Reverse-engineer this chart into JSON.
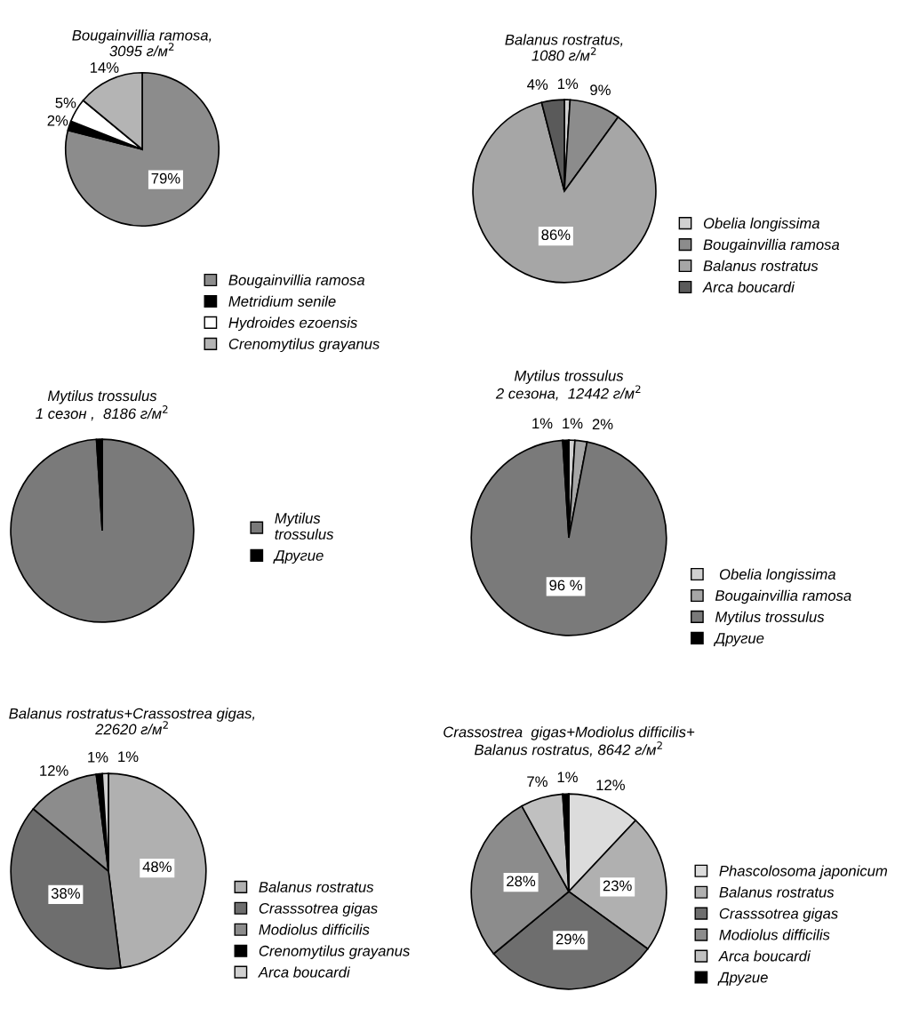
{
  "chart_data": [
    {
      "type": "pie",
      "title": "Bougainvillia ramosa,\n3095 г/м$^{2}$",
      "categories": [
        "Bougainvillia ramosa",
        "Metridium senile",
        "Hydroides ezoensis",
        "Crenomytilus grayanus"
      ],
      "values": [
        79,
        2,
        5,
        14
      ],
      "colors": [
        "#8c8c8c",
        "#000000",
        "#ffffff",
        "#b4b4b4"
      ],
      "value_labels": [
        "79%",
        "2%",
        "5%",
        "14%"
      ],
      "legend": "bottom right"
    },
    {
      "type": "pie",
      "title": "Balanus rostratus,\n1080 г/м$^{2}$",
      "categories": [
        "Obelia longissima",
        "Bougainvillia ramosa",
        "Balanus rostratus",
        "Arca boucardi"
      ],
      "values": [
        1,
        9,
        86,
        4
      ],
      "colors": [
        "#d0d0d0",
        "#8c8c8c",
        "#a6a6a6",
        "#5a5a5a"
      ],
      "value_labels": [
        "1%",
        "9%",
        "86%",
        "4%"
      ],
      "legend": "right"
    },
    {
      "type": "pie",
      "title": "Mytilus trossulus\n1 сезон ,  8186 г/м$^{2}$",
      "categories": [
        "Mytilus\ntrossulus",
        "Другие"
      ],
      "values": [
        99,
        1
      ],
      "colors": [
        "#7a7a7a",
        "#000000"
      ],
      "legend": "right"
    },
    {
      "type": "pie",
      "title": "Mytilus trossulus\n2 сезона,  12442 г/м$^{2}$",
      "categories": [
        " Obelia longissima",
        "Bougainvillia ramosa",
        "Mytilus trossulus",
        "Другие"
      ],
      "values": [
        1,
        2,
        96,
        1
      ],
      "colors": [
        "#d0d0d0",
        "#a6a6a6",
        "#7a7a7a",
        "#000000"
      ],
      "value_labels": [
        "1%",
        "2%",
        "96 %",
        "1%"
      ],
      "legend": "right"
    },
    {
      "type": "pie",
      "title": "Balanus rostratus+Crassostrea gigas,\n22620 г/м$^{2}$",
      "categories": [
        "Balanus rostratus",
        "Crasssotrea gigas",
        "Modiolus difficilis",
        "Crenomytilus grayanus",
        "Arca boucardi"
      ],
      "values": [
        48,
        38,
        12,
        1,
        1
      ],
      "colors": [
        "#b0b0b0",
        "#6e6e6e",
        "#8c8c8c",
        "#000000",
        "#d0d0d0"
      ],
      "value_labels": [
        "48%",
        "38%",
        "12%",
        "1%",
        "1%"
      ],
      "legend": "right"
    },
    {
      "type": "pie",
      "title": "Crassostrea  gigas+Modiolus difficilis+\nBalanus rostratus, 8642 г/м$^{2}$",
      "categories": [
        "Phascolosoma japonicum",
        "Balanus rostratus",
        "Crasssotrea gigas",
        "Modiolus difficilis",
        "Arca boucardi",
        "Другие"
      ],
      "values": [
        12,
        23,
        29,
        28,
        7,
        1
      ],
      "colors": [
        "#dcdcdc",
        "#b0b0b0",
        "#6e6e6e",
        "#8c8c8c",
        "#c0c0c0",
        "#000000"
      ],
      "value_labels": [
        "12%",
        "23%",
        "29%",
        "28%",
        "7%",
        "1%"
      ],
      "legend": "right"
    }
  ]
}
